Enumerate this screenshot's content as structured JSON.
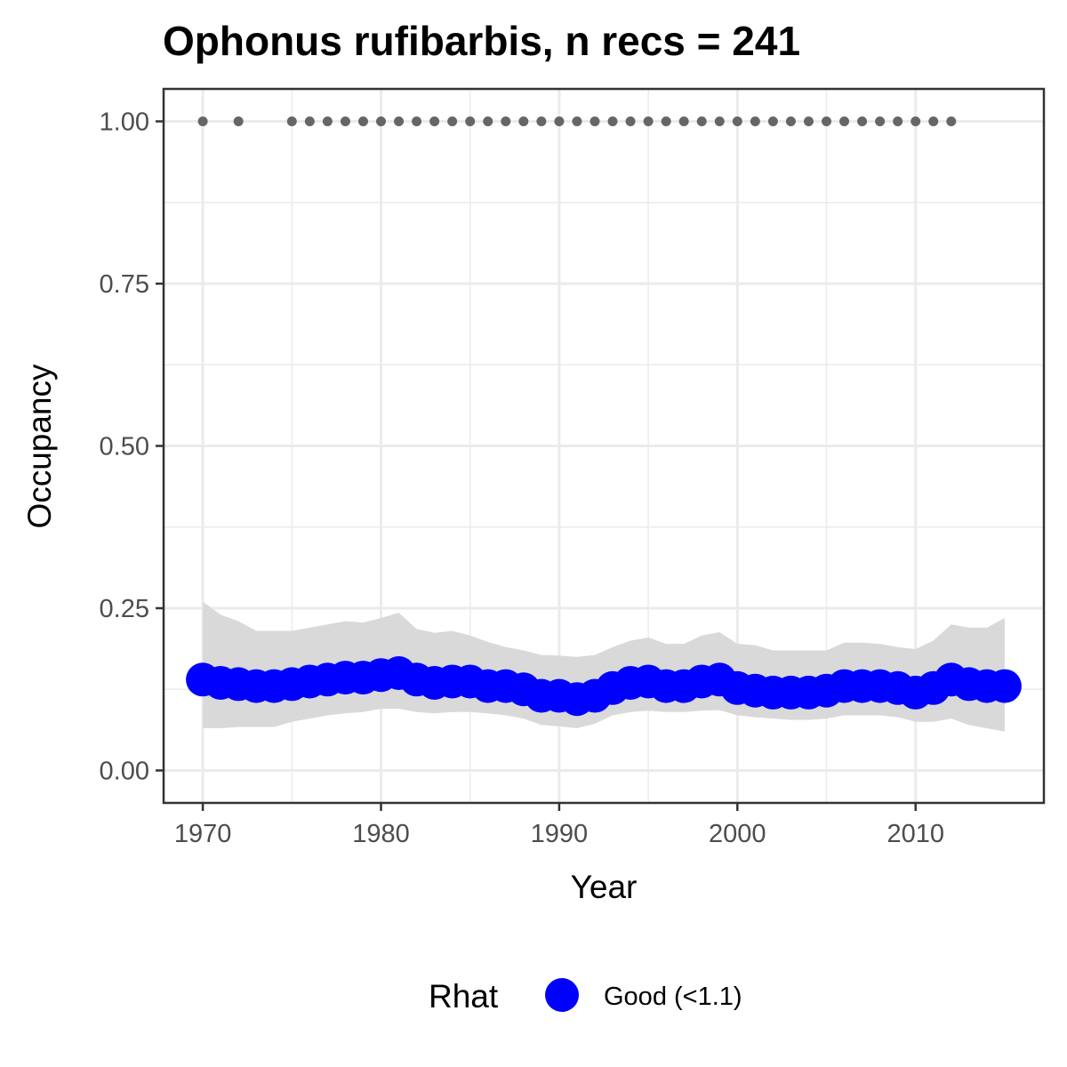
{
  "chart_data": {
    "type": "line",
    "title": "Ophonus rufibarbis, n recs = 241",
    "xlabel": "Year",
    "ylabel": "Occupancy",
    "xlim": [
      1967.8,
      2017.2
    ],
    "ylim": [
      -0.05,
      1.05
    ],
    "x_ticks": [
      1970,
      1980,
      1990,
      2000,
      2010
    ],
    "y_ticks": [
      0.0,
      0.25,
      0.5,
      0.75,
      1.0
    ],
    "y_tick_labels": [
      "0.00",
      "0.25",
      "0.50",
      "0.75",
      "1.00"
    ],
    "grid": true,
    "legend": {
      "title": "Rhat",
      "position": "bottom",
      "entries": [
        {
          "label": "Good (<1.1)",
          "color": "#0000ff"
        }
      ]
    },
    "series": [
      {
        "name": "Good (<1.1)",
        "color": "#0000ff",
        "x": [
          1970,
          1971,
          1972,
          1973,
          1974,
          1975,
          1976,
          1977,
          1978,
          1979,
          1980,
          1981,
          1982,
          1983,
          1984,
          1985,
          1986,
          1987,
          1988,
          1989,
          1990,
          1991,
          1992,
          1993,
          1994,
          1995,
          1996,
          1997,
          1998,
          1999,
          2000,
          2001,
          2002,
          2003,
          2004,
          2005,
          2006,
          2007,
          2008,
          2009,
          2010,
          2011,
          2012,
          2013,
          2014,
          2015
        ],
        "y": [
          0.14,
          0.135,
          0.133,
          0.13,
          0.13,
          0.133,
          0.137,
          0.14,
          0.143,
          0.143,
          0.147,
          0.15,
          0.14,
          0.135,
          0.137,
          0.137,
          0.13,
          0.13,
          0.125,
          0.115,
          0.115,
          0.11,
          0.115,
          0.127,
          0.135,
          0.137,
          0.13,
          0.13,
          0.137,
          0.14,
          0.127,
          0.123,
          0.12,
          0.12,
          0.12,
          0.123,
          0.13,
          0.13,
          0.13,
          0.127,
          0.12,
          0.127,
          0.14,
          0.133,
          0.13,
          0.13
        ],
        "lower": [
          0.065,
          0.065,
          0.067,
          0.067,
          0.067,
          0.075,
          0.08,
          0.085,
          0.088,
          0.09,
          0.095,
          0.095,
          0.09,
          0.088,
          0.09,
          0.09,
          0.088,
          0.085,
          0.08,
          0.07,
          0.068,
          0.065,
          0.072,
          0.085,
          0.09,
          0.092,
          0.09,
          0.09,
          0.092,
          0.093,
          0.085,
          0.082,
          0.08,
          0.078,
          0.078,
          0.08,
          0.085,
          0.085,
          0.085,
          0.082,
          0.075,
          0.075,
          0.08,
          0.07,
          0.065,
          0.06
        ],
        "upper": [
          0.26,
          0.24,
          0.23,
          0.215,
          0.215,
          0.215,
          0.22,
          0.225,
          0.23,
          0.228,
          0.235,
          0.243,
          0.218,
          0.212,
          0.215,
          0.208,
          0.198,
          0.19,
          0.185,
          0.178,
          0.177,
          0.175,
          0.178,
          0.19,
          0.2,
          0.205,
          0.195,
          0.195,
          0.208,
          0.213,
          0.195,
          0.193,
          0.185,
          0.185,
          0.185,
          0.185,
          0.197,
          0.197,
          0.195,
          0.19,
          0.187,
          0.2,
          0.225,
          0.22,
          0.22,
          0.235
        ]
      }
    ],
    "records": {
      "color": "#666666",
      "x": [
        1970,
        1972,
        1975,
        1976,
        1977,
        1978,
        1979,
        1980,
        1981,
        1982,
        1983,
        1984,
        1985,
        1986,
        1987,
        1988,
        1989,
        1990,
        1991,
        1992,
        1993,
        1994,
        1995,
        1996,
        1997,
        1998,
        1999,
        2000,
        2001,
        2002,
        2003,
        2004,
        2005,
        2006,
        2007,
        2008,
        2009,
        2010,
        2011,
        2012
      ],
      "y": 1.0
    }
  }
}
